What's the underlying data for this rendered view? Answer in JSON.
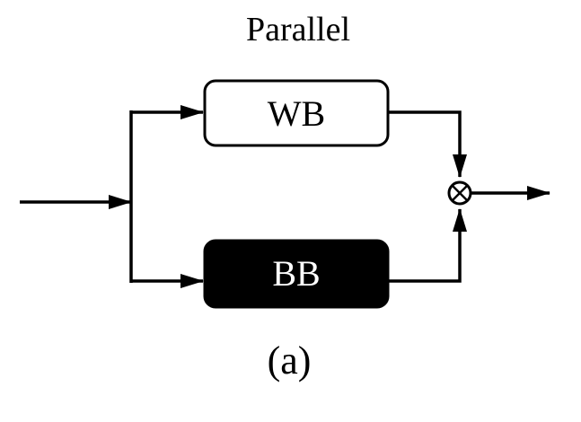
{
  "diagram": {
    "title": "Parallel",
    "caption": "(a)",
    "blocks": {
      "top": {
        "label": "WB",
        "fill": "#ffffff",
        "text_color": "#000000"
      },
      "bottom": {
        "label": "BB",
        "fill": "#000000",
        "text_color": "#ffffff"
      }
    },
    "combiner": {
      "symbol": "multiply-circle"
    },
    "line_color": "#000000"
  }
}
